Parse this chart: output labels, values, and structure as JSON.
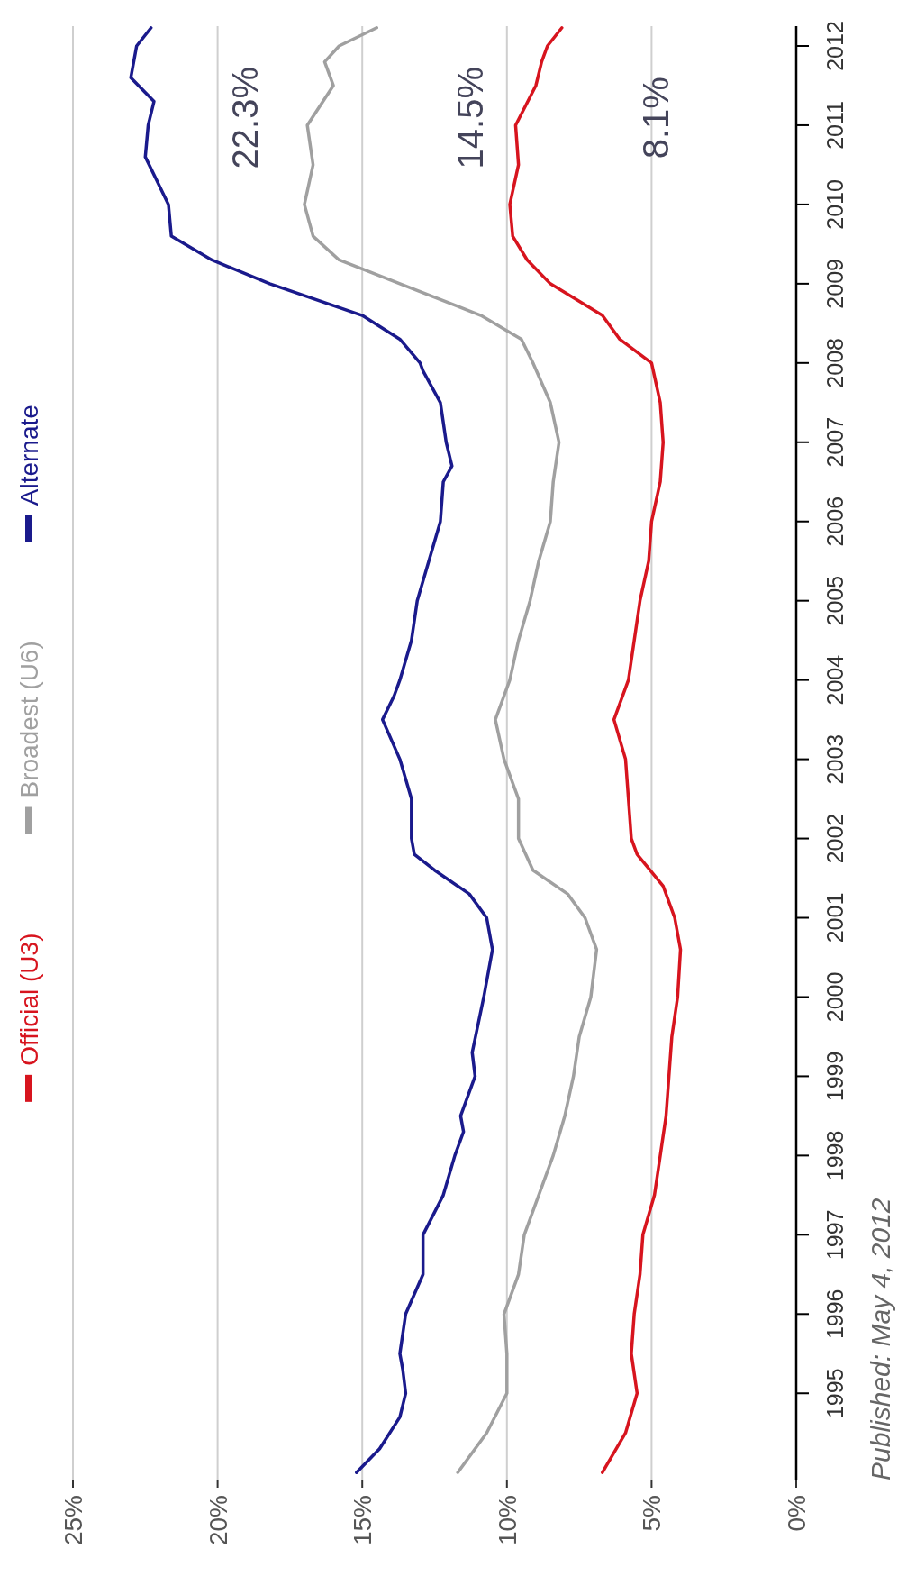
{
  "chart_data": {
    "type": "line",
    "xlim": [
      25,
      0
    ],
    "xticks": [
      {
        "value": 25,
        "label": "25%"
      },
      {
        "value": 20,
        "label": "20%"
      },
      {
        "value": 15,
        "label": "15%"
      },
      {
        "value": 10,
        "label": "10%"
      },
      {
        "value": 5,
        "label": "5%"
      },
      {
        "value": 0,
        "label": "0%"
      }
    ],
    "ylim": [
      1993.9,
      2012.25
    ],
    "yticks": [
      1995,
      1996,
      1997,
      1998,
      1999,
      2000,
      2001,
      2002,
      2003,
      2004,
      2005,
      2006,
      2007,
      2008,
      2009,
      2010,
      2011,
      2012
    ],
    "grid": "x",
    "legend": "left",
    "series": [
      {
        "name": "Official (U3)",
        "color": "#d7141e",
        "values": [
          1994.0,
          1994.5,
          1995,
          1995.5,
          1996,
          1996.5,
          1997,
          1997.5,
          1998,
          1998.5,
          1999,
          1999.5,
          2000,
          2000.6,
          2001,
          2001.4,
          2001.8,
          2002,
          2002.5,
          2003,
          2003.5,
          2004,
          2004.5,
          2005,
          2005.5,
          2006,
          2006.5,
          2007,
          2007.5,
          2008,
          2008.3,
          2008.6,
          2009,
          2009.3,
          2009.6,
          2010,
          2010.5,
          2011,
          2011.5,
          2011.8,
          2012,
          2012.23
        ],
        "x": [
          6.7,
          5.9,
          5.5,
          5.7,
          5.6,
          5.4,
          5.3,
          4.9,
          4.7,
          4.5,
          4.4,
          4.3,
          4.1,
          4.0,
          4.2,
          4.6,
          5.5,
          5.7,
          5.8,
          5.9,
          6.3,
          5.8,
          5.6,
          5.4,
          5.1,
          5.0,
          4.7,
          4.6,
          4.7,
          5.0,
          6.1,
          6.7,
          8.5,
          9.3,
          9.8,
          9.9,
          9.6,
          9.7,
          9.0,
          8.8,
          8.6,
          8.1
        ]
      },
      {
        "name": "Broadest (U6)",
        "color": "#a0a0a0",
        "values": [
          1994.0,
          1994.5,
          1995,
          1995.5,
          1996,
          1996.5,
          1997,
          1997.5,
          1998,
          1998.5,
          1999,
          1999.5,
          2000,
          2000.6,
          2001,
          2001.3,
          2001.6,
          2002,
          2002.5,
          2003,
          2003.5,
          2004,
          2004.5,
          2005,
          2005.5,
          2006,
          2006.5,
          2007,
          2007.5,
          2008,
          2008.3,
          2008.6,
          2009,
          2009.3,
          2009.6,
          2010,
          2010.5,
          2011,
          2011.5,
          2011.8,
          2012,
          2012.23
        ],
        "x": [
          11.7,
          10.7,
          10.0,
          10.0,
          10.1,
          9.6,
          9.4,
          8.9,
          8.4,
          8.0,
          7.7,
          7.5,
          7.1,
          6.9,
          7.3,
          7.9,
          9.1,
          9.6,
          9.6,
          10.1,
          10.4,
          9.9,
          9.6,
          9.2,
          8.9,
          8.5,
          8.4,
          8.2,
          8.5,
          9.1,
          9.5,
          10.9,
          13.7,
          15.8,
          16.7,
          17.0,
          16.7,
          16.9,
          16.0,
          16.3,
          15.8,
          14.5
        ]
      },
      {
        "name": "Alternate",
        "color": "#1a1a8c",
        "values": [
          1994.0,
          1994.3,
          1994.7,
          1995,
          1995.3,
          1995.5,
          1996,
          1996.5,
          1997,
          1997.5,
          1998,
          1998.3,
          1998.5,
          1999,
          1999.3,
          2000,
          2000.6,
          2001,
          2001.3,
          2001.6,
          2001.8,
          2002,
          2002.5,
          2003,
          2003.5,
          2003.8,
          2004,
          2004.5,
          2005,
          2005.5,
          2006,
          2006.5,
          2006.7,
          2007,
          2007.5,
          2007.9,
          2008,
          2008.3,
          2008.6,
          2009,
          2009.3,
          2009.6,
          2010,
          2010.3,
          2010.6,
          2011,
          2011.3,
          2011.6,
          2012,
          2012.23
        ],
        "x": [
          15.2,
          14.4,
          13.7,
          13.5,
          13.6,
          13.7,
          13.5,
          12.9,
          12.9,
          12.2,
          11.8,
          11.5,
          11.6,
          11.1,
          11.2,
          10.8,
          10.5,
          10.7,
          11.3,
          12.5,
          13.2,
          13.3,
          13.3,
          13.7,
          14.3,
          13.9,
          13.7,
          13.3,
          13.1,
          12.7,
          12.3,
          12.2,
          11.9,
          12.1,
          12.3,
          12.9,
          13.0,
          13.7,
          15.0,
          18.2,
          20.2,
          21.6,
          21.7,
          22.1,
          22.5,
          22.4,
          22.2,
          23.0,
          22.8,
          22.3
        ]
      }
    ],
    "annotations": [
      {
        "text": "22.3%",
        "x": 22.3,
        "y": 2012.23
      },
      {
        "text": "14.5%",
        "x": 14.5,
        "y": 2012.23
      },
      {
        "text": "8.1%",
        "x": 8.1,
        "y": 2012.23
      },
      "Published: May 4, 2012"
    ]
  }
}
